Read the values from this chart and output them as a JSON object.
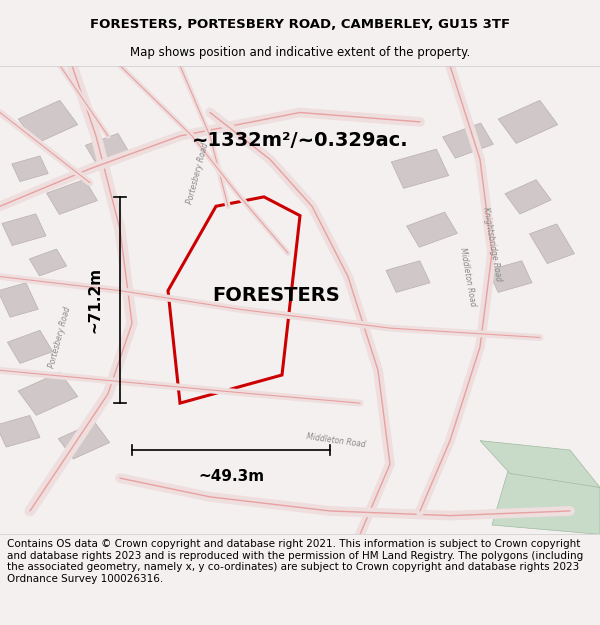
{
  "title_line1": "FORESTERS, PORTESBERY ROAD, CAMBERLEY, GU15 3TF",
  "title_line2": "Map shows position and indicative extent of the property.",
  "property_label": "FORESTERS",
  "area_label": "~1332m²/~0.329ac.",
  "width_label": "~49.3m",
  "height_label": "~71.2m",
  "footer_text": "Contains OS data © Crown copyright and database right 2021. This information is subject to Crown copyright and database rights 2023 and is reproduced with the permission of HM Land Registry. The polygons (including the associated geometry, namely x, y co-ordinates) are subject to Crown copyright and database rights 2023 Ordnance Survey 100026316.",
  "bg_color": "#f5f0f0",
  "map_bg": "#ffffff",
  "property_poly_color": "#cc0000",
  "road_color": "#e8a0a0",
  "building_color": "#d0c8c8",
  "green_color": "#c8dac8",
  "title_fontsize": 9.5,
  "subtitle_fontsize": 8.5,
  "label_fontsize": 16,
  "area_fontsize": 16,
  "footer_fontsize": 7.5
}
